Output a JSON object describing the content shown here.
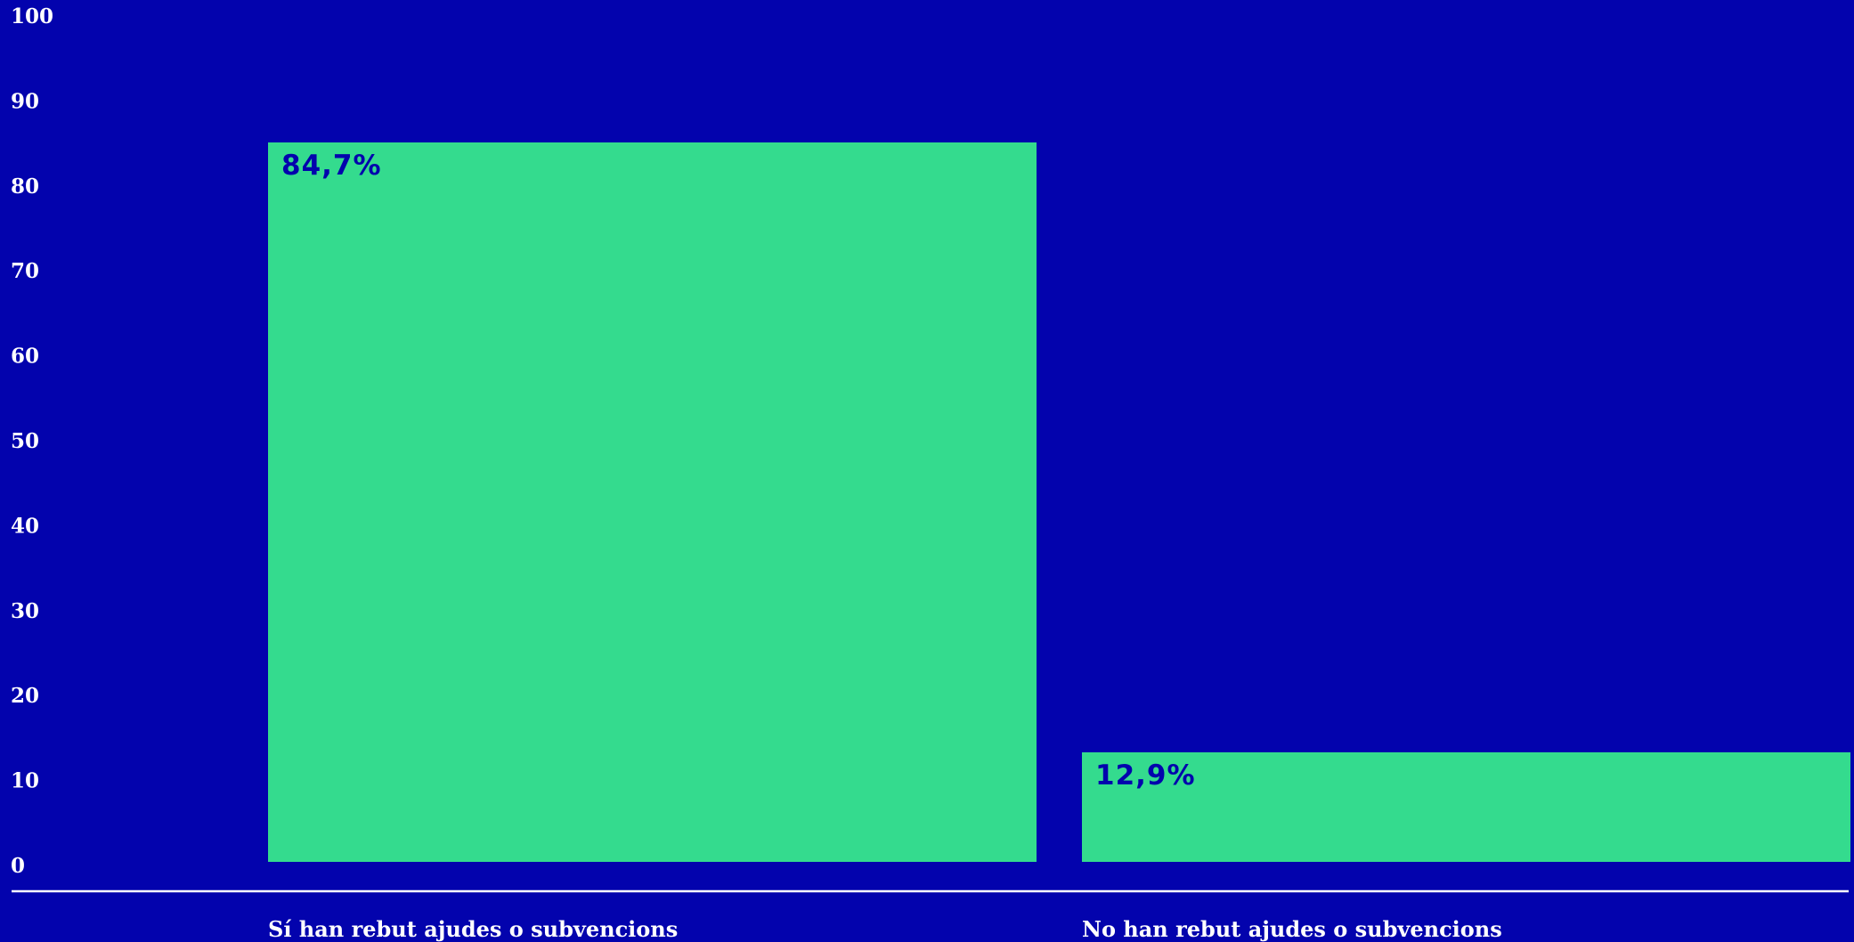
{
  "chart_data": {
    "type": "bar",
    "categories": [
      "Sí han rebut ajudes o subvencions",
      "No han rebut ajudes o subvencions"
    ],
    "values": [
      84.7,
      12.9
    ],
    "data_labels": [
      "84,7%",
      "12,9%"
    ],
    "title": "",
    "xlabel": "",
    "ylabel": "",
    "ylim": [
      0,
      100
    ],
    "yticks": [
      0,
      10,
      20,
      30,
      40,
      50,
      60,
      70,
      80,
      90,
      100
    ],
    "grid": false,
    "legend": "none"
  },
  "colors": {
    "background": "#0303ad",
    "bar": "#34db8e",
    "data_label": "#0303ad",
    "text": "#ffffff",
    "baseline": "#ffffff"
  }
}
